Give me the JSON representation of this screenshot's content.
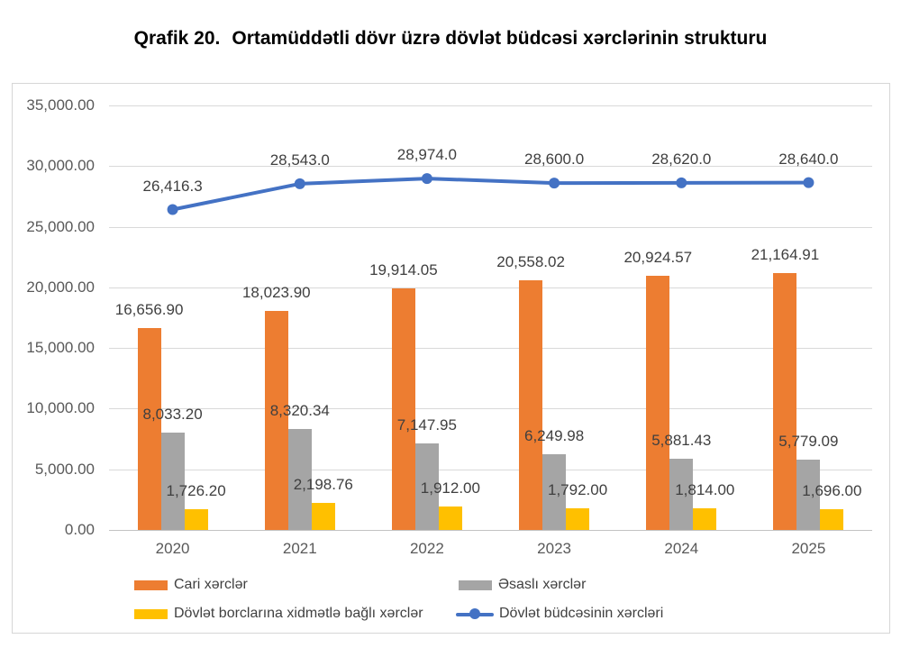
{
  "page": {
    "title_prefix": "Qrafik 20.",
    "title_main": "Ortamüddətli dövr üzrə dövlət büdcəsi xərclərinin strukturu"
  },
  "chart_data": {
    "type": "bar",
    "subtype": "grouped bars with line overlay",
    "title": "Qrafik 20. Ortamüddətli dövr üzrə dövlət büdcəsi xərclərinin strukturu",
    "xlabel": "",
    "ylabel": "",
    "ylim": [
      0,
      35000
    ],
    "grid": "horizontal",
    "legend_position": "bottom",
    "categories": [
      "2020",
      "2021",
      "2022",
      "2023",
      "2024",
      "2025"
    ],
    "y_ticks": [
      "35,000.00",
      "30,000.00",
      "25,000.00",
      "20,000.00",
      "15,000.00",
      "10,000.00",
      "5,000.00",
      "0.00"
    ],
    "series": [
      {
        "key": "cari-xercler",
        "name": "Cari xərclər",
        "type": "bar",
        "color": "#ED7D31",
        "values": [
          16656.9,
          18023.9,
          19914.05,
          20558.02,
          20924.57,
          21164.91
        ],
        "labels": [
          "16,656.90",
          "18,023.90",
          "19,914.05",
          "20,558.02",
          "20,924.57",
          "21,164.91"
        ]
      },
      {
        "key": "esasli-xercler",
        "name": "Əsaslı xərclər",
        "type": "bar",
        "color": "#A5A5A5",
        "values": [
          8033.2,
          8320.34,
          7147.95,
          6249.98,
          5881.43,
          5779.09
        ],
        "labels": [
          "8,033.20",
          "8,320.34",
          "7,147.95",
          "6,249.98",
          "5,881.43",
          "5,779.09"
        ]
      },
      {
        "key": "dovlet-borclarina-xidmetle-bagli-xercler",
        "name": "Dövlət borclarına xidmətlə bağlı xərclər",
        "type": "bar",
        "color": "#FFC000",
        "values": [
          1726.2,
          2198.76,
          1912.0,
          1792.0,
          1814.0,
          1696.0
        ],
        "labels": [
          "1,726.20",
          "2,198.76",
          "1,912.00",
          "1,792.00",
          "1,814.00",
          "1,696.00"
        ]
      },
      {
        "key": "dovlet-budcesinin-xercleri",
        "name": "Dövlət büdcəsinin xərcləri",
        "type": "line",
        "color": "#4472C4",
        "values": [
          26416.3,
          28543.0,
          28974.0,
          28600.0,
          28620.0,
          28640.0
        ],
        "labels": [
          "26,416.3",
          "28,543.0",
          "28,974.0",
          "28,600.0",
          "28,620.0",
          "28,640.0"
        ]
      }
    ]
  }
}
